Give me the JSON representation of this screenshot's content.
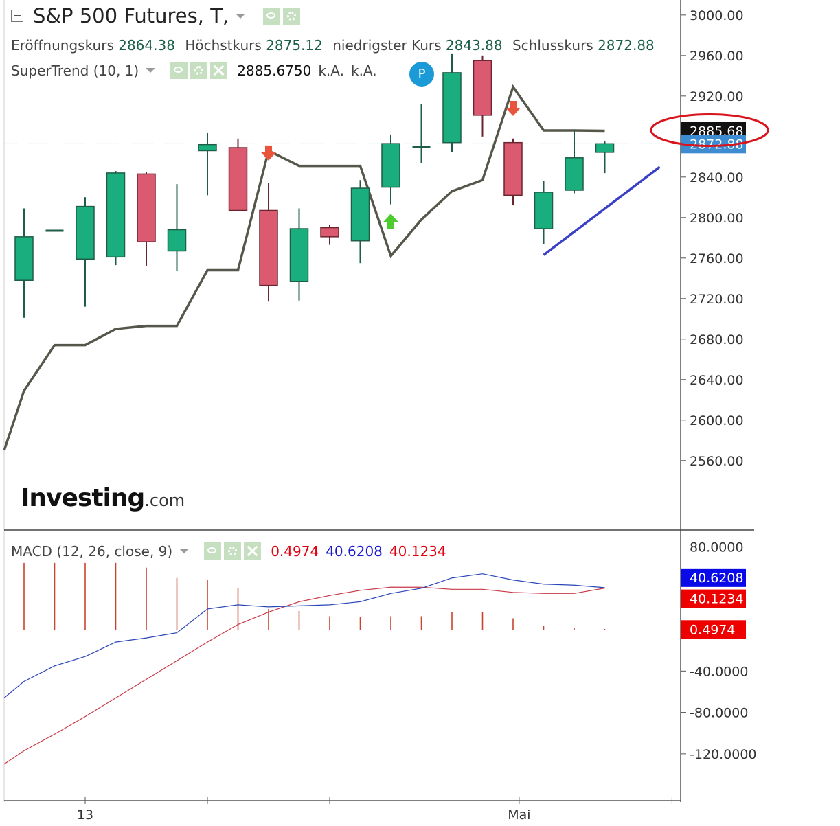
{
  "header": {
    "title": "S&P 500 Futures, T,",
    "ohlc": [
      {
        "label": "Eröffnungskurs",
        "value": "2864.38"
      },
      {
        "label": "Höchstkurs",
        "value": "2875.12"
      },
      {
        "label": "niedrigster Kurs",
        "value": "2843.88"
      },
      {
        "label": "Schlusskurs",
        "value": "2872.88"
      }
    ]
  },
  "supertrend_legend": {
    "name": "SuperTrend (10, 1)",
    "value": "2885.6750",
    "na1": "k.A.",
    "na2": "k.A."
  },
  "macd_legend": {
    "name": "MACD (12, 26, close, 9)",
    "hist": "0.4974",
    "macd": "40.6208",
    "signal": "40.1234"
  },
  "badge_label": "P",
  "logo": {
    "main": "Investing",
    "suffix": ".com"
  },
  "colors": {
    "up": "#1aae7e",
    "down": "#db5a70",
    "supertrend": "#55574a",
    "macd_line": "#2a45b8",
    "signal_line": "#c83a48",
    "hist": "#c8442e",
    "trend_line": "#3a3fc8",
    "circle": "#d8141c",
    "last_price_tag": "#3d8bd1",
    "supertrend_tag": "#111111",
    "badge": "#1a9ad6"
  },
  "chart_data": [
    {
      "type": "candlestick",
      "y_ticks": [
        "3000.00",
        "2960.00",
        "2920.00",
        "2880.00",
        "2840.00",
        "2800.00",
        "2760.00",
        "2720.00",
        "2680.00",
        "2640.00",
        "2600.00",
        "2560.00"
      ],
      "ylim": [
        2530,
        3006
      ],
      "x_labels": [
        {
          "index": 2,
          "label": "13"
        },
        {
          "index": 16.2,
          "label": "Mai"
        }
      ],
      "candles": [
        {
          "o": 2738,
          "h": 2809,
          "l": 2701,
          "c": 2781
        },
        {
          "o": 2787,
          "h": 2788,
          "l": 2786,
          "c": 2787
        },
        {
          "o": 2759,
          "h": 2820,
          "l": 2712,
          "c": 2811
        },
        {
          "o": 2761,
          "h": 2846,
          "l": 2753,
          "c": 2844
        },
        {
          "o": 2843,
          "h": 2845,
          "l": 2752,
          "c": 2776
        },
        {
          "o": 2767,
          "h": 2833,
          "l": 2747,
          "c": 2788
        },
        {
          "o": 2866,
          "h": 2884,
          "l": 2822,
          "c": 2872
        },
        {
          "o": 2869,
          "h": 2878,
          "l": 2806,
          "c": 2807
        },
        {
          "o": 2807,
          "h": 2834,
          "l": 2717,
          "c": 2733
        },
        {
          "o": 2737,
          "h": 2809,
          "l": 2718,
          "c": 2789
        },
        {
          "o": 2790,
          "h": 2793,
          "l": 2773,
          "c": 2781
        },
        {
          "o": 2777,
          "h": 2837,
          "l": 2755,
          "c": 2829
        },
        {
          "o": 2830,
          "h": 2882,
          "l": 2813,
          "c": 2873
        },
        {
          "o": 2870,
          "h": 2912,
          "l": 2854,
          "c": 2870
        },
        {
          "o": 2874,
          "h": 2962,
          "l": 2865,
          "c": 2943
        },
        {
          "o": 2955,
          "h": 2960,
          "l": 2880,
          "c": 2901
        },
        {
          "o": 2874,
          "h": 2878,
          "l": 2812,
          "c": 2822
        },
        {
          "o": 2789,
          "h": 2836,
          "l": 2774,
          "c": 2825
        },
        {
          "o": 2827,
          "h": 2887,
          "l": 2824,
          "c": 2859
        },
        {
          "o": 2864.38,
          "h": 2875.12,
          "l": 2843.88,
          "c": 2872.88
        }
      ],
      "supertrend": [
        {
          "x": -0.65,
          "y": 2570
        },
        {
          "x": 0,
          "y": 2629
        },
        {
          "x": 1,
          "y": 2674
        },
        {
          "x": 2,
          "y": 2674
        },
        {
          "x": 3,
          "y": 2690
        },
        {
          "x": 4,
          "y": 2693
        },
        {
          "x": 5,
          "y": 2693
        },
        {
          "x": 6,
          "y": 2748
        },
        {
          "x": 7,
          "y": 2748
        },
        {
          "x": 8,
          "y": 2866
        },
        {
          "x": 9,
          "y": 2851
        },
        {
          "x": 10,
          "y": 2851
        },
        {
          "x": 11,
          "y": 2851
        },
        {
          "x": 12,
          "y": 2762
        },
        {
          "x": 13,
          "y": 2798
        },
        {
          "x": 14,
          "y": 2826
        },
        {
          "x": 15,
          "y": 2837
        },
        {
          "x": 16,
          "y": 2929
        },
        {
          "x": 17,
          "y": 2886
        },
        {
          "x": 18,
          "y": 2886
        },
        {
          "x": 19,
          "y": 2885.675
        }
      ],
      "signals": [
        {
          "index": 8,
          "type": "down",
          "y": 2863
        },
        {
          "index": 12,
          "type": "up",
          "y": 2797
        },
        {
          "index": 16,
          "type": "down",
          "y": 2907
        }
      ],
      "trend_line": [
        {
          "x": 17,
          "y": 2763
        },
        {
          "x": 20.8,
          "y": 2850
        }
      ],
      "highlight_price": 2872.88,
      "price_tags": [
        {
          "label": "2885.68",
          "value": 2885.68,
          "style": "black"
        },
        {
          "label": "2872.88",
          "value": 2872.88,
          "style": "blue"
        }
      ],
      "circled": "2885.68"
    },
    {
      "type": "line",
      "name": "MACD",
      "y_ticks": [
        "80.0000",
        "-40.0000",
        "-80.0000",
        "-120.0000"
      ],
      "ylim": [
        -140,
        83
      ],
      "histogram": [
        64.5,
        64.5,
        64.5,
        64.5,
        60,
        50,
        48,
        40,
        20,
        18,
        13,
        12,
        13,
        13,
        17,
        17,
        11,
        4,
        2,
        0.4974
      ],
      "macd_line": [
        -66,
        -50,
        -35,
        -26,
        -12,
        -8,
        -3,
        20,
        24,
        22,
        23,
        24,
        27,
        35,
        40,
        50,
        54,
        48,
        44,
        43,
        40.6208
      ],
      "signal_line": [
        -130,
        -117,
        -101,
        -84,
        -66,
        -48,
        -30,
        -12,
        5,
        17,
        27,
        33,
        38,
        41,
        41,
        39,
        39,
        36,
        35,
        35,
        40.1234
      ],
      "price_tags": [
        {
          "label": "40.6208",
          "value": 40.6208,
          "style": "blue"
        },
        {
          "label": "40.1234",
          "value": 40.1234,
          "style": "red"
        },
        {
          "label": "0.4974",
          "value": 0.4974,
          "style": "red"
        }
      ]
    }
  ]
}
